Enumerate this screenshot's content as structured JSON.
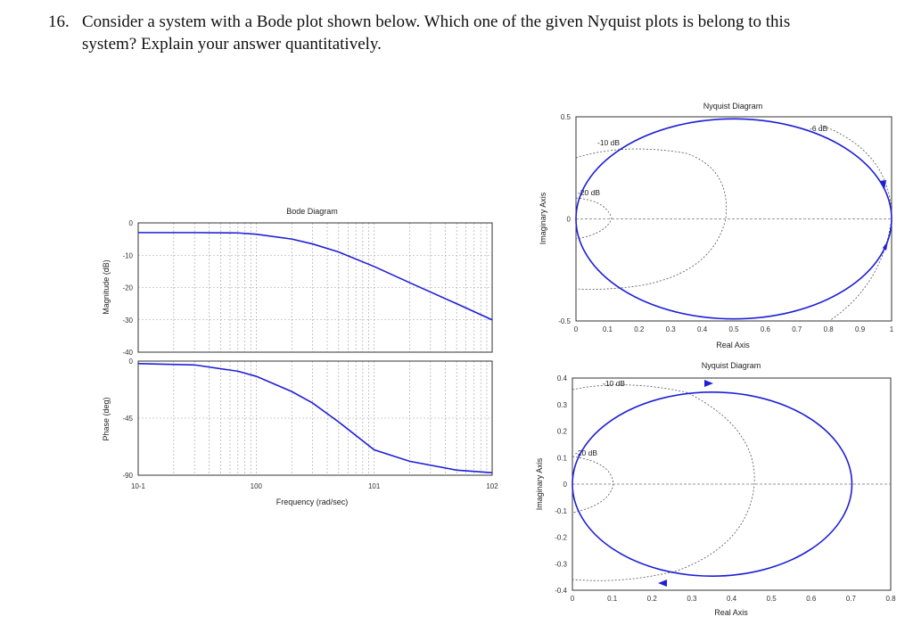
{
  "question": {
    "number": "16.",
    "text": "Consider a system with a Bode plot shown below. Which one of the given Nyquist plots is belong to this system? Explain your answer quantitatively."
  },
  "colors": {
    "curve": "#1f1fd6",
    "grid": "#a0a0a0",
    "axis": "#333333"
  },
  "chart_data": [
    {
      "type": "line",
      "title": "Bode Diagram",
      "panel": "magnitude",
      "xlabel": "Frequency (rad/sec)",
      "ylabel": "Magnitude (dB)",
      "xscale": "log",
      "xlim": [
        0.1,
        100
      ],
      "ylim": [
        -40,
        0
      ],
      "xticks": [
        "10-1",
        "100",
        "101",
        "102"
      ],
      "yticks": [
        "0",
        "-10",
        "-20",
        "-30",
        "-40"
      ],
      "x": [
        0.1,
        0.3,
        0.7,
        1,
        2,
        3,
        5,
        10,
        20,
        50,
        100
      ],
      "y": [
        -3,
        -3,
        -3.1,
        -3.5,
        -5,
        -6.5,
        -9,
        -13.5,
        -18.5,
        -25,
        -30
      ],
      "grid": true
    },
    {
      "type": "line",
      "panel": "phase",
      "ylabel": "Phase (deg)",
      "xscale": "log",
      "xlim": [
        0.1,
        100
      ],
      "ylim": [
        -90,
        0
      ],
      "yticks": [
        "0",
        "-45",
        "-90"
      ],
      "x": [
        0.1,
        0.3,
        0.7,
        1,
        2,
        3,
        5,
        10,
        20,
        50,
        100
      ],
      "y": [
        -2,
        -3,
        -8,
        -12,
        -24,
        -33,
        -48,
        -70,
        -79,
        -86,
        -88
      ],
      "grid": true
    },
    {
      "type": "line",
      "title": "Nyquist Diagram",
      "panel": "nyquist-top",
      "xlabel": "Real Axis",
      "ylabel": "Imaginary Axis",
      "xlim": [
        0,
        1
      ],
      "ylim": [
        -0.5,
        0.5
      ],
      "xticks": [
        "0",
        "0.1",
        "0.2",
        "0.3",
        "0.4",
        "0.5",
        "0.6",
        "0.7",
        "0.8",
        "0.9",
        "1"
      ],
      "yticks": [
        "0.5",
        "0",
        "-0.5"
      ],
      "annotations": [
        "-10 dB",
        "-20 dB",
        "-6 dB"
      ],
      "center": [
        0.5,
        0
      ],
      "radius": 0.5
    },
    {
      "type": "line",
      "title": "Nyquist Diagram",
      "panel": "nyquist-bottom",
      "xlabel": "Real Axis",
      "ylabel": "Imaginary Axis",
      "xlim": [
        0,
        0.8
      ],
      "ylim": [
        -0.4,
        0.4
      ],
      "xticks": [
        "0",
        "0.1",
        "0.2",
        "0.3",
        "0.4",
        "0.5",
        "0.6",
        "0.7",
        "0.8"
      ],
      "yticks": [
        "0.4",
        "0.3",
        "0.2",
        "0.1",
        "0",
        "-0.1",
        "-0.2",
        "-0.3",
        "-0.4"
      ],
      "annotations": [
        "-10 dB",
        "-20 dB"
      ],
      "center": [
        0.3535,
        0
      ],
      "radius": 0.3535
    }
  ]
}
